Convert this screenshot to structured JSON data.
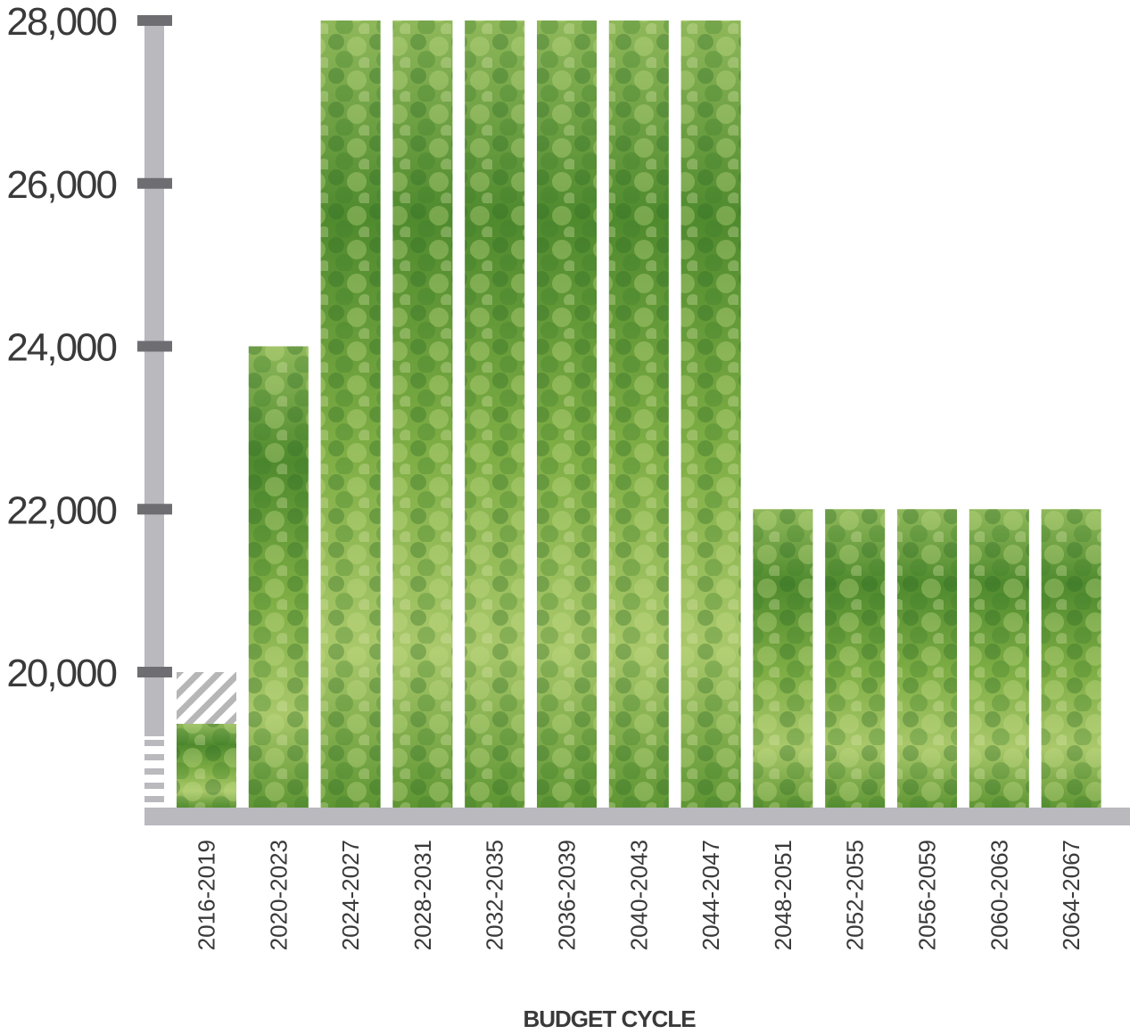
{
  "chart_data": {
    "type": "bar",
    "title": "",
    "xlabel": "BUDGET CYCLE",
    "ylabel": "",
    "categories": [
      "2016-2019",
      "2020-2023",
      "2024-2027",
      "2028-2031",
      "2032-2035",
      "2036-2039",
      "2040-2043",
      "2044-2047",
      "2048-2051",
      "2052-2055",
      "2056-2059",
      "2060-2063",
      "2064-2067"
    ],
    "values": [
      20000,
      24000,
      28000,
      28000,
      28000,
      28000,
      28000,
      28000,
      22000,
      22000,
      22000,
      22000,
      22000
    ],
    "ylim": [
      18300,
      28000
    ],
    "yticks": [
      20000,
      22000,
      24000,
      26000,
      28000
    ],
    "ytick_labels": [
      "20,000",
      "22,000",
      "24,000",
      "26,000",
      "28,000"
    ],
    "axis_break": true,
    "grid": false,
    "legend": "none",
    "colors": {
      "axis": "#b9b9be",
      "tick": "#6d6d72",
      "bar_light": "#b4cc6a",
      "bar_mid": "#6f9e3a",
      "bar_dark": "#2f6a25",
      "hatch": "#b6b6b6"
    }
  }
}
